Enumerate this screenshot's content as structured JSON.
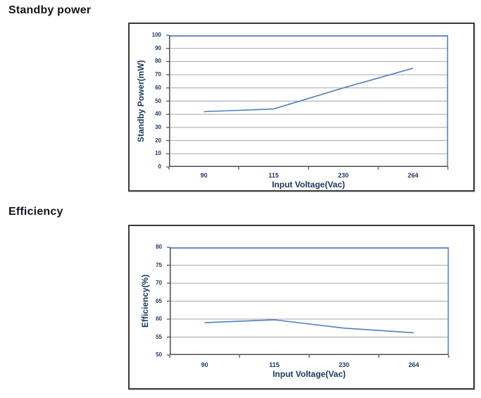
{
  "sections": [
    {
      "title": "Standby power"
    },
    {
      "title": "Efficiency"
    }
  ],
  "colors": {
    "line_blue": "#4f81bd",
    "gridline": "#a6a6a6",
    "axis": "#4d4d4d",
    "tick_label": "#1f3864",
    "axis_title": "#17375d",
    "section_title": "#15151f",
    "box_border": "#3a3a3a",
    "background": "#ffffff"
  },
  "chart_data": [
    {
      "type": "line",
      "title": "Standby power",
      "categories": [
        "90",
        "115",
        "230",
        "264"
      ],
      "values": [
        42,
        44,
        60,
        75
      ],
      "xlabel": "Input Voltage(Vac)",
      "ylabel": "Standby Power(mW)",
      "ylim": [
        0,
        100
      ],
      "ytick_step": 10,
      "grid": true,
      "legend": "none",
      "line_color": "#4f81bd"
    },
    {
      "type": "line",
      "title": "Efficiency",
      "categories": [
        "90",
        "115",
        "230",
        "264"
      ],
      "values": [
        59,
        59.8,
        57.5,
        56.2
      ],
      "xlabel": "Input Voltage(Vac)",
      "ylabel": "Efficiency(%)",
      "ylim": [
        50,
        80
      ],
      "ytick_step": 5,
      "grid": true,
      "legend": "none",
      "line_color": "#4f81bd"
    }
  ]
}
